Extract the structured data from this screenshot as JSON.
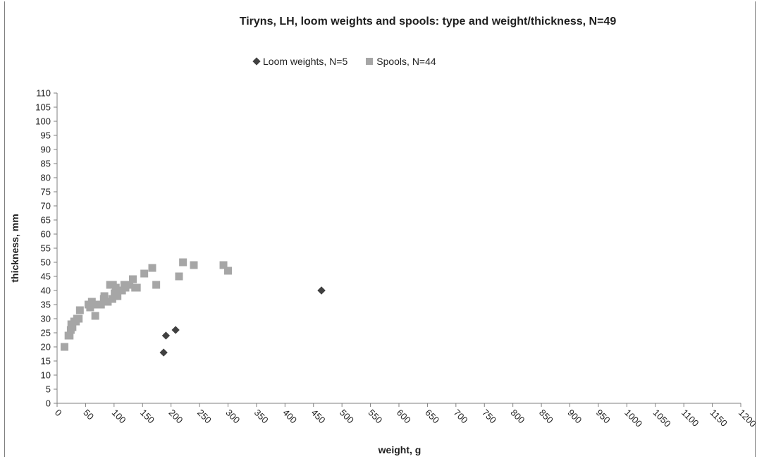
{
  "chart_data": {
    "type": "scatter",
    "title": "Tiryns, LH, loom weights and spools: type and weight/thickness, N=49",
    "xlabel": "weight, g",
    "ylabel": "thickness, mm",
    "xlim": [
      0,
      1200
    ],
    "ylim": [
      0,
      110
    ],
    "xticks": [
      0,
      50,
      100,
      150,
      200,
      250,
      300,
      350,
      400,
      450,
      500,
      550,
      600,
      650,
      700,
      750,
      800,
      850,
      900,
      950,
      1000,
      1050,
      1100,
      1150,
      1200
    ],
    "yticks": [
      0,
      5,
      10,
      15,
      20,
      25,
      30,
      35,
      40,
      45,
      50,
      55,
      60,
      65,
      70,
      75,
      80,
      85,
      90,
      95,
      100,
      105,
      110
    ],
    "grid": false,
    "legend_position": "top",
    "series": [
      {
        "name": "Loom weights, N=5",
        "marker": "diamond",
        "color": "#404040",
        "points": [
          [
            187,
            18
          ],
          [
            191,
            24
          ],
          [
            208,
            26
          ],
          [
            464,
            40
          ],
          [
            464,
            40
          ]
        ]
      },
      {
        "name": "Spools, N=44",
        "marker": "square",
        "color": "#a6a6a6",
        "points": [
          [
            13,
            20
          ],
          [
            20,
            24
          ],
          [
            22,
            24
          ],
          [
            24,
            26
          ],
          [
            25,
            28
          ],
          [
            27,
            27
          ],
          [
            30,
            29
          ],
          [
            33,
            29
          ],
          [
            35,
            30
          ],
          [
            38,
            30
          ],
          [
            40,
            33
          ],
          [
            55,
            35
          ],
          [
            58,
            34
          ],
          [
            61,
            36
          ],
          [
            64,
            35
          ],
          [
            67,
            31
          ],
          [
            72,
            35
          ],
          [
            77,
            35
          ],
          [
            83,
            38
          ],
          [
            89,
            36
          ],
          [
            93,
            42
          ],
          [
            97,
            37
          ],
          [
            101,
            39
          ],
          [
            103,
            41
          ],
          [
            106,
            38
          ],
          [
            110,
            40
          ],
          [
            114,
            40
          ],
          [
            118,
            42
          ],
          [
            123,
            42
          ],
          [
            127,
            42
          ],
          [
            133,
            44
          ],
          [
            137,
            41
          ],
          [
            140,
            41
          ],
          [
            153,
            46
          ],
          [
            167,
            48
          ],
          [
            174,
            42
          ],
          [
            214,
            45
          ],
          [
            221,
            50
          ],
          [
            240,
            49
          ],
          [
            292,
            49
          ],
          [
            300,
            47
          ],
          [
            98,
            42
          ],
          [
            120,
            41
          ],
          [
            82,
            37
          ]
        ]
      }
    ]
  }
}
